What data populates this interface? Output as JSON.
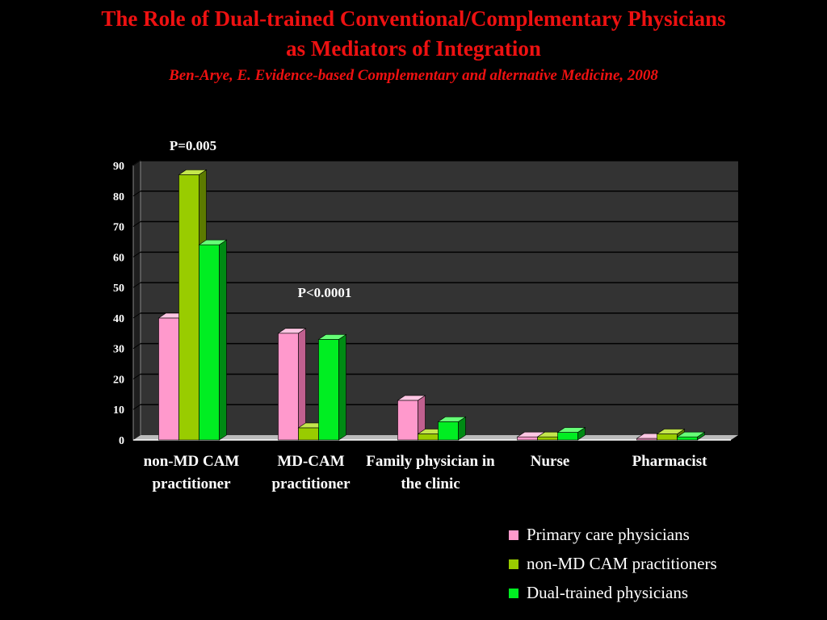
{
  "header": {
    "title_line1": "The Role of Dual-trained Conventional/Complementary Physicians",
    "title_line2": "as Mediators of Integration",
    "subtitle": "Ben-Arye, E. Evidence-based Complementary and alternative Medicine, 2008"
  },
  "chart_data": {
    "type": "bar",
    "categories": [
      "non-MD CAM practitioner",
      "MD-CAM practitioner",
      "Family physician in the clinic",
      "Nurse",
      "Pharmacist"
    ],
    "series": [
      {
        "name": "Primary care physicians",
        "values": [
          40,
          35,
          13,
          1,
          0.5
        ],
        "color": "#ff99cc",
        "side": "#c0608f",
        "top": "#ffc6e3"
      },
      {
        "name": "non-MD CAM practitioners",
        "values": [
          87,
          4,
          2,
          1,
          2
        ],
        "color": "#99cc00",
        "side": "#5c7a00",
        "top": "#c4e64d"
      },
      {
        "name": "Dual-trained physicians",
        "values": [
          64,
          33,
          6,
          2.5,
          1
        ],
        "color": "#00ee22",
        "side": "#008a14",
        "top": "#66ff77"
      }
    ],
    "ylim": [
      0,
      90
    ],
    "yticks": [
      0,
      10,
      20,
      30,
      40,
      50,
      60,
      70,
      80,
      90
    ],
    "grid": true,
    "legend": "bottom-right",
    "annotations": [
      {
        "text": "P=0.005",
        "category": 0
      },
      {
        "text": "P<0.0001",
        "category": 1
      }
    ]
  }
}
